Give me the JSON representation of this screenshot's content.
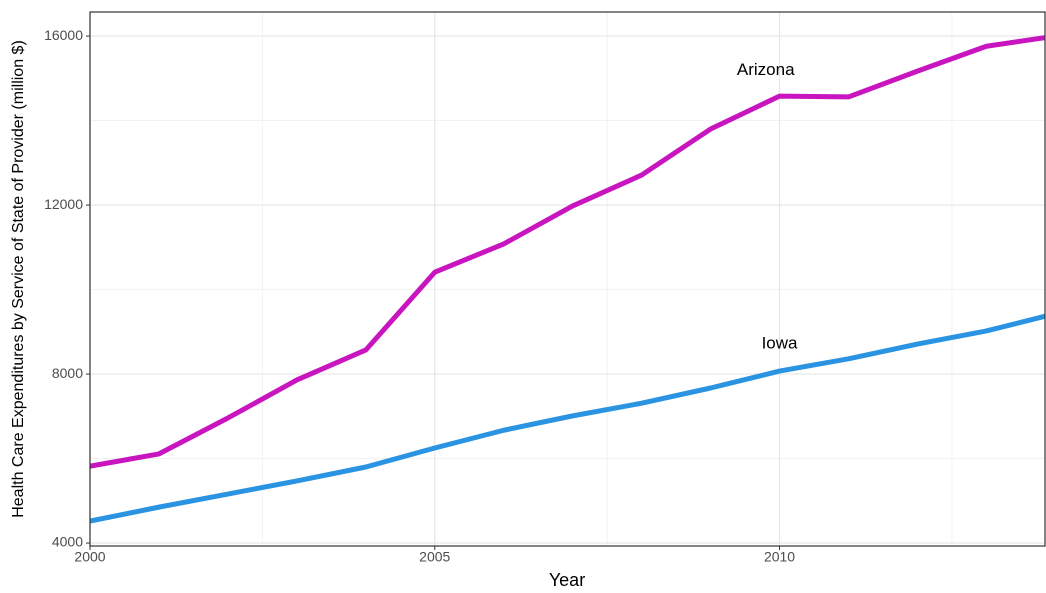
{
  "chart_data": {
    "type": "line",
    "x_label": "Year",
    "y_label": "Health Care Expenditures by Service of State of Provider (million $)",
    "x": [
      2000,
      2001,
      2002,
      2003,
      2004,
      2005,
      2006,
      2007,
      2008,
      2009,
      2010,
      2011,
      2012,
      2013,
      2014
    ],
    "series": [
      {
        "name": "Arizona",
        "color": "#c815c0",
        "values": [
          5820,
          6110,
          6960,
          7860,
          8570,
          10410,
          11080,
          11980,
          12710,
          13800,
          14580,
          14560,
          15170,
          15760,
          16000
        ]
      },
      {
        "name": "Iowa",
        "color": "#2a94e2",
        "values": [
          4520,
          4850,
          5160,
          5470,
          5800,
          6250,
          6670,
          7010,
          7310,
          7670,
          8070,
          8360,
          8710,
          9020,
          9430
        ]
      }
    ],
    "annotations": [
      {
        "text": "Arizona",
        "x": 2009.8,
        "y": 15190
      },
      {
        "text": "Iowa",
        "x": 2010,
        "y": 8710
      }
    ],
    "xlim": [
      2000,
      2013.85
    ],
    "ylim": [
      3930,
      16570
    ],
    "xticks": [
      2000,
      2005,
      2010
    ],
    "yticks": [
      4000,
      8000,
      12000,
      16000
    ],
    "xminor": [
      2002.5,
      2007.5,
      2012.5
    ],
    "yminor": [
      6000,
      10000,
      14000
    ],
    "grid": true
  }
}
